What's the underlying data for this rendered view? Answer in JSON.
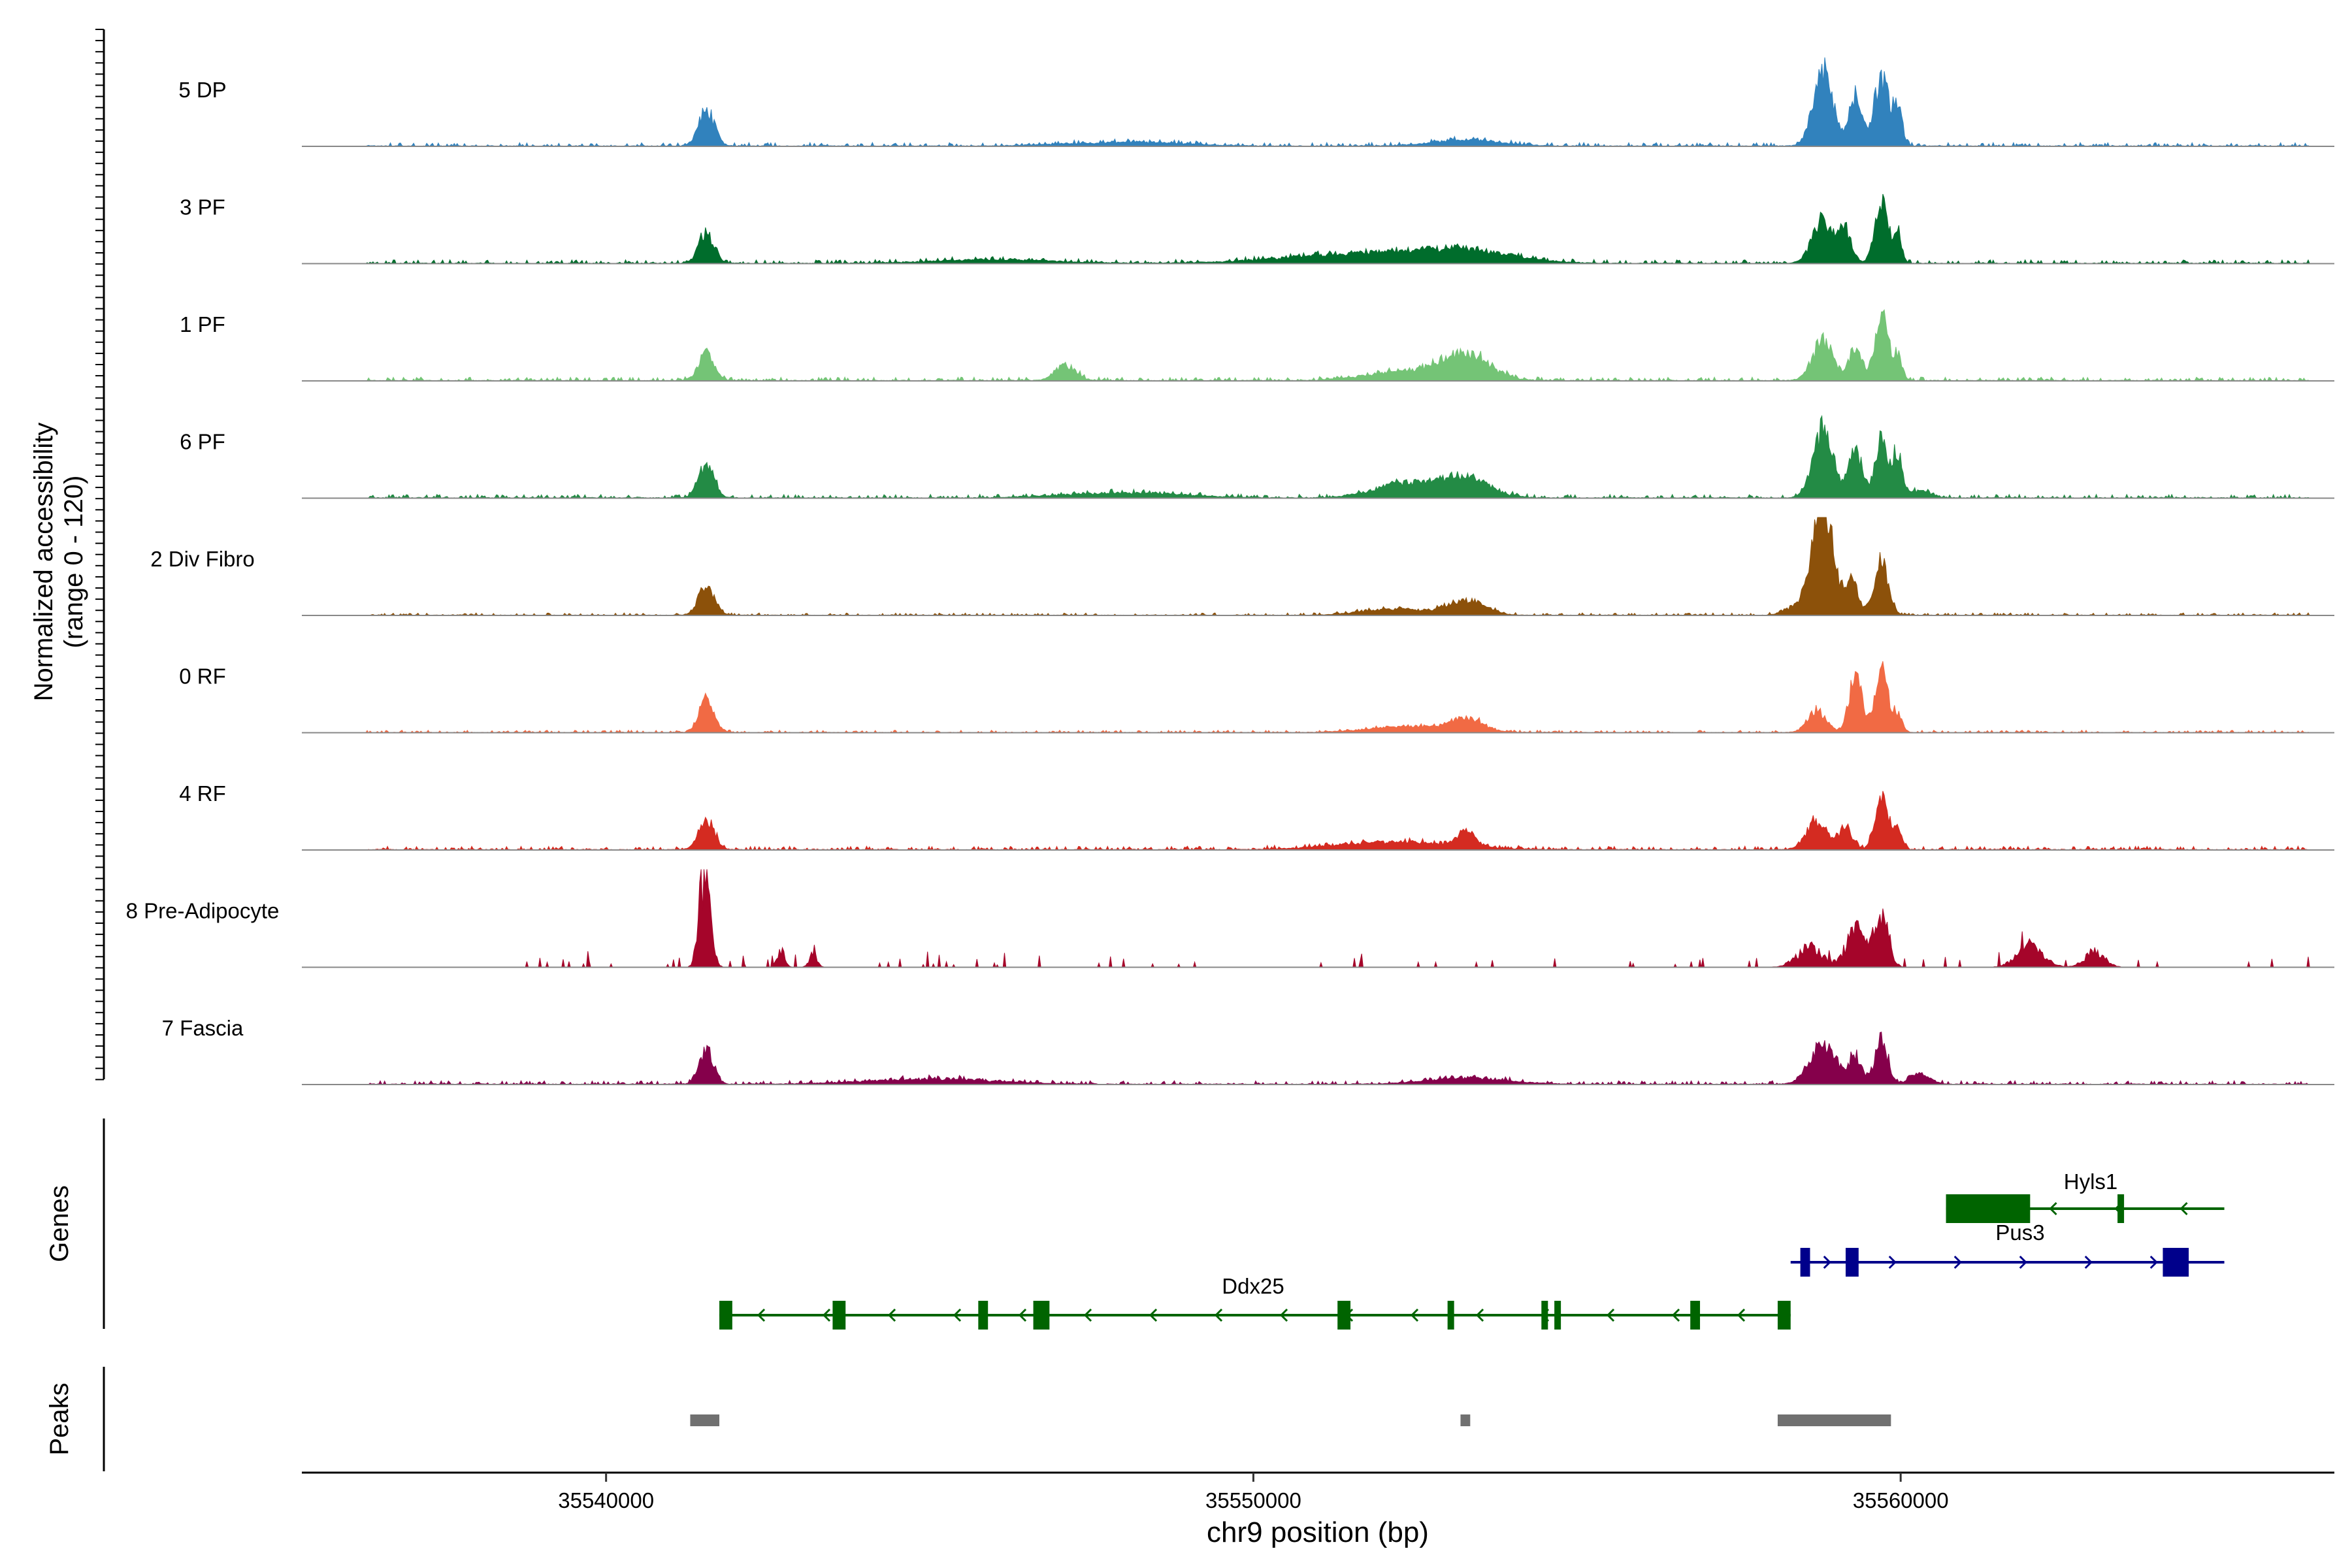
{
  "chart_data": {
    "type": "area",
    "title": "",
    "region": {
      "chromosome": "chr9",
      "start": 35535300,
      "end": 35566700
    },
    "coverage": {
      "ylabel_line1": "Normalized accessibility",
      "ylabel_line2": "(range 0 - 120)",
      "ylim": [
        0,
        120
      ],
      "series": [
        {
          "name": "5 DP",
          "color": "#3182BD",
          "peaks": [
            [
              35541550,
              30,
              120
            ],
            [
              35558800,
              60,
              150
            ],
            [
              35559300,
              40,
              100
            ],
            [
              35559950,
              30,
              70
            ],
            [
              35559700,
              55,
              110
            ],
            [
              35553300,
              5,
              500
            ],
            [
              35548000,
              3,
              900
            ]
          ],
          "noise": 3,
          "seed": 1
        },
        {
          "name": "3 PF",
          "color": "#006D2C",
          "peaks": [
            [
              35541550,
              24,
              120
            ],
            [
              35558800,
              35,
              160
            ],
            [
              35559150,
              25,
              100
            ],
            [
              35559700,
              50,
              100
            ],
            [
              35559950,
              28,
              60
            ],
            [
              35551800,
              8,
              1200
            ],
            [
              35553300,
              8,
              700
            ],
            [
              35546000,
              3,
              900
            ]
          ],
          "noise": 3,
          "seed": 2
        },
        {
          "name": "1 PF",
          "color": "#74C476",
          "peaks": [
            [
              35541550,
              22,
              120
            ],
            [
              35547100,
              12,
              160
            ],
            [
              35553300,
              20,
              350
            ],
            [
              35552400,
              8,
              600
            ],
            [
              35558800,
              32,
              160
            ],
            [
              35559700,
              55,
              100
            ],
            [
              35559300,
              25,
              100
            ],
            [
              35559950,
              20,
              70
            ]
          ],
          "noise": 3,
          "seed": 3
        },
        {
          "name": "6 PF",
          "color": "#238B45",
          "peaks": [
            [
              35541550,
              28,
              120
            ],
            [
              35558800,
              55,
              160
            ],
            [
              35559300,
              40,
              100
            ],
            [
              35559950,
              35,
              80
            ],
            [
              35559700,
              45,
              100
            ],
            [
              35553300,
              15,
              350
            ],
            [
              35552400,
              12,
              500
            ],
            [
              35560300,
              6,
              150
            ],
            [
              35548000,
              4,
              900
            ]
          ],
          "noise": 3,
          "seed": 4
        },
        {
          "name": "2 Div Fibro",
          "color": "#8C510A",
          "peaks": [
            [
              35541550,
              25,
              120
            ],
            [
              35553300,
              12,
              280
            ],
            [
              35552200,
              5,
              500
            ],
            [
              35558800,
              95,
              160
            ],
            [
              35559250,
              30,
              90
            ],
            [
              35559700,
              45,
              110
            ],
            [
              35558400,
              6,
              180
            ]
          ],
          "noise": 2,
          "seed": 5
        },
        {
          "name": "0 RF",
          "color": "#F16A44",
          "peaks": [
            [
              35541550,
              25,
              120
            ],
            [
              35553300,
              10,
              250
            ],
            [
              35552400,
              5,
              600
            ],
            [
              35558700,
              18,
              140
            ],
            [
              35559300,
              45,
              100
            ],
            [
              35559700,
              50,
              100
            ],
            [
              35559950,
              15,
              70
            ]
          ],
          "noise": 2,
          "seed": 6
        },
        {
          "name": "4 RF",
          "color": "#D42B21",
          "peaks": [
            [
              35541550,
              24,
              120
            ],
            [
              35553300,
              12,
              140
            ],
            [
              35552200,
              6,
              900
            ],
            [
              35558700,
              22,
              160
            ],
            [
              35559150,
              18,
              100
            ],
            [
              35559700,
              45,
              100
            ],
            [
              35559950,
              15,
              70
            ]
          ],
          "noise": 3,
          "seed": 7
        },
        {
          "name": "8 Pre-Adipocyte",
          "color": "#A5052A",
          "peaks": [
            [
              35541550,
              70,
              80
            ],
            [
              35541450,
              30,
              60
            ],
            [
              35542700,
              15,
              60
            ],
            [
              35543200,
              12,
              60
            ],
            [
              35559300,
              35,
              140
            ],
            [
              35559700,
              50,
              110
            ],
            [
              35558600,
              18,
              200
            ],
            [
              35562000,
              20,
              200
            ],
            [
              35563000,
              15,
              150
            ]
          ],
          "noise": 0,
          "seed": 8,
          "spiky": true
        },
        {
          "name": "7 Fascia",
          "color": "#85004B",
          "peaks": [
            [
              35541550,
              28,
              110
            ],
            [
              35558800,
              32,
              200
            ],
            [
              35559300,
              22,
              100
            ],
            [
              35559700,
              35,
              100
            ],
            [
              35560300,
              8,
              150
            ],
            [
              35553300,
              5,
              600
            ],
            [
              35545000,
              4,
              1000
            ]
          ],
          "noise": 3,
          "seed": 9
        }
      ]
    },
    "genes_panel_label": "Genes",
    "genes": [
      {
        "name": "Hyls1",
        "strand": "-",
        "start": 35560700,
        "end": 35565000,
        "row": 0,
        "color": "#006400",
        "exons": [
          [
            35560700,
            35562000
          ],
          [
            35563350,
            35563450
          ]
        ]
      },
      {
        "name": "Pus3",
        "strand": "+",
        "start": 35558300,
        "end": 35565000,
        "row": 1,
        "color": "#00008B",
        "exons": [
          [
            35558450,
            35558600
          ],
          [
            35559150,
            35559350
          ],
          [
            35564050,
            35564450
          ]
        ]
      },
      {
        "name": "Ddx25",
        "strand": "-",
        "start": 35541750,
        "end": 35558300,
        "row": 2,
        "color": "#006400",
        "exons": [
          [
            35541750,
            35541950
          ],
          [
            35543500,
            35543700
          ],
          [
            35545750,
            35545900
          ],
          [
            35546600,
            35546850
          ],
          [
            35551300,
            35551500
          ],
          [
            35553000,
            35553100
          ],
          [
            35554450,
            35554550
          ],
          [
            35554650,
            35554750
          ],
          [
            35556750,
            35556900
          ],
          [
            35558100,
            35558300
          ]
        ]
      }
    ],
    "peaks_panel_label": "Peaks",
    "peak_regions": [
      [
        35541300,
        35541750
      ],
      [
        35553200,
        35553350
      ],
      [
        35558100,
        35559850
      ]
    ],
    "xlabel": "chr9 position (bp)",
    "x_ticks": [
      35540000,
      35550000,
      35560000
    ],
    "x_tick_labels": [
      "35540000",
      "35550000",
      "35560000"
    ]
  }
}
